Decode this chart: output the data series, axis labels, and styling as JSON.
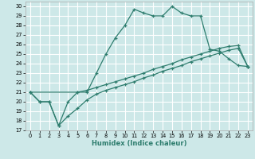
{
  "xlabel": "Humidex (Indice chaleur)",
  "background_color": "#cde8e8",
  "grid_color": "#ffffff",
  "line_color": "#2e7d6e",
  "xlim": [
    -0.5,
    23.5
  ],
  "ylim": [
    17,
    30.5
  ],
  "yticks": [
    17,
    18,
    19,
    20,
    21,
    22,
    23,
    24,
    25,
    26,
    27,
    28,
    29,
    30
  ],
  "xticks": [
    0,
    1,
    2,
    3,
    4,
    5,
    6,
    7,
    8,
    9,
    10,
    11,
    12,
    13,
    14,
    15,
    16,
    17,
    18,
    19,
    20,
    21,
    22,
    23
  ],
  "line1_x": [
    0,
    1,
    2,
    3,
    4,
    5,
    6,
    7,
    8,
    9,
    10,
    11,
    12,
    13,
    14,
    15,
    16,
    17,
    18,
    19,
    20,
    21,
    22,
    23
  ],
  "line1_y": [
    21.0,
    20.0,
    20.0,
    17.5,
    20.0,
    21.0,
    21.0,
    23.0,
    25.0,
    26.7,
    28.0,
    29.7,
    29.3,
    29.0,
    29.0,
    30.0,
    29.3,
    29.0,
    29.0,
    25.5,
    25.3,
    24.5,
    23.8,
    23.7
  ],
  "line2_x": [
    0,
    1,
    2,
    3,
    4,
    5,
    6,
    7,
    8,
    9,
    10,
    11,
    12,
    13,
    14,
    15,
    16,
    17,
    18,
    19,
    20,
    21,
    22,
    23
  ],
  "line2_y": [
    21.0,
    20.0,
    20.0,
    17.5,
    18.5,
    19.3,
    20.2,
    20.8,
    21.2,
    21.5,
    21.8,
    22.1,
    22.5,
    22.8,
    23.2,
    23.5,
    23.8,
    24.2,
    24.5,
    24.8,
    25.1,
    25.4,
    25.6,
    23.7
  ],
  "line3_x": [
    0,
    5,
    6,
    7,
    8,
    9,
    10,
    11,
    12,
    13,
    14,
    15,
    16,
    17,
    18,
    19,
    20,
    21,
    22,
    23
  ],
  "line3_y": [
    21.0,
    21.0,
    21.2,
    21.5,
    21.8,
    22.1,
    22.4,
    22.7,
    23.0,
    23.4,
    23.7,
    24.0,
    24.4,
    24.7,
    25.0,
    25.3,
    25.6,
    25.8,
    25.9,
    23.7
  ]
}
